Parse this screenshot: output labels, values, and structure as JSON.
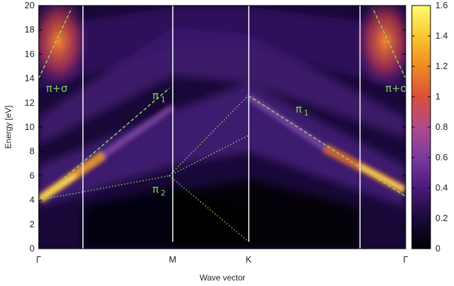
{
  "chart_data": {
    "type": "heatmap",
    "title": "",
    "xlabel": "Wave vector",
    "ylabel": "Energy [eV]",
    "x_ticks": [
      "Γ",
      "M",
      "K",
      "Γ"
    ],
    "ylim": [
      0,
      20
    ],
    "y_ticks": [
      0,
      2,
      4,
      6,
      8,
      10,
      12,
      14,
      16,
      18,
      20
    ],
    "colorbar": {
      "range": [
        0,
        1.6
      ],
      "ticks": [
        "0",
        "0.2",
        "0.4",
        "0.6",
        "0.8",
        "1",
        "1.2",
        "1.4",
        "1.6"
      ],
      "colormap": [
        "#000000",
        "#1a0a3a",
        "#4a1a7a",
        "#7a3aa0",
        "#b04a8a",
        "#d8503a",
        "#f08a20",
        "#f8c830",
        "#fcfc70"
      ]
    },
    "annotations": [
      {
        "text": "π+σ",
        "x_pos": 0.02,
        "y": 12.9
      },
      {
        "text": "π",
        "sub": "1",
        "x_pos": 0.31,
        "y": 12.3
      },
      {
        "text": "π",
        "sub": "2",
        "x_pos": 0.31,
        "y": 4.6
      },
      {
        "text": "π",
        "sub": "1",
        "x_pos": 0.7,
        "y": 11.2
      },
      {
        "text": "π+σ",
        "x_pos": 0.945,
        "y": 12.9
      }
    ],
    "guide_lines": [
      {
        "style": "dashed",
        "points": [
          [
            0.0,
            4.0
          ],
          [
            0.356,
            13.2
          ]
        ]
      },
      {
        "style": "dashed",
        "points": [
          [
            0.571,
            12.6
          ],
          [
            1.0,
            4.3
          ]
        ]
      },
      {
        "style": "dashed",
        "points": [
          [
            0.0,
            14.0
          ],
          [
            0.09,
            19.8
          ]
        ]
      },
      {
        "style": "dashed",
        "points": [
          [
            1.0,
            14.0
          ],
          [
            0.91,
            19.8
          ]
        ]
      },
      {
        "style": "dotted",
        "points": [
          [
            0.0,
            4.0
          ],
          [
            0.356,
            6.0
          ]
        ]
      },
      {
        "style": "dotted",
        "points": [
          [
            0.356,
            6.0
          ],
          [
            0.571,
            9.3
          ]
        ]
      },
      {
        "style": "dotted",
        "points": [
          [
            0.356,
            6.0
          ],
          [
            0.571,
            12.6
          ]
        ]
      },
      {
        "style": "dotted",
        "points": [
          [
            0.356,
            6.0
          ],
          [
            0.571,
            0.6
          ]
        ]
      }
    ],
    "colors": {
      "guide_line": "#8fe060",
      "divider": "#ffffff",
      "background": "#0c0420"
    }
  }
}
